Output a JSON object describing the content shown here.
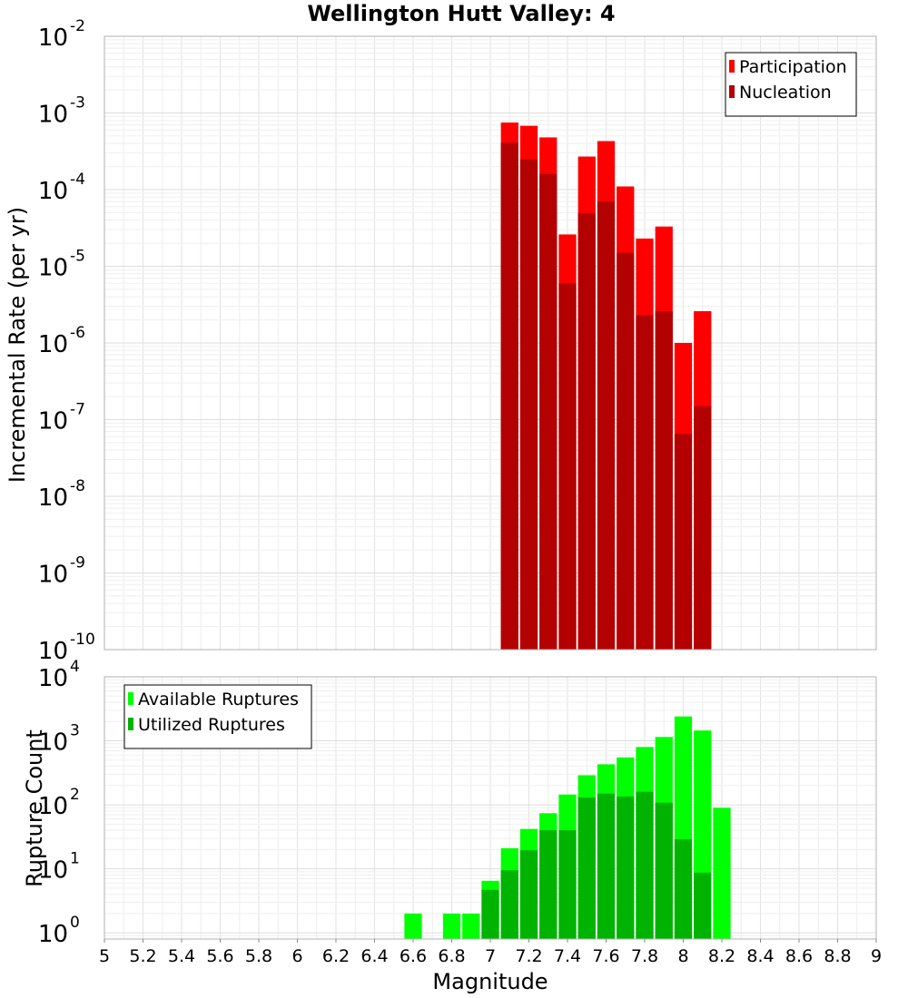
{
  "chart_data": [
    {
      "type": "bar",
      "title": "Wellington Hutt Valley: 4",
      "xlabel": "",
      "ylabel": "Incremental Rate (per yr)",
      "y_scale": "log",
      "xlim": [
        5,
        9
      ],
      "ylim": [
        1e-10,
        0.01
      ],
      "y_ticks": [
        {
          "base": "10",
          "exp": "-2"
        },
        {
          "base": "10",
          "exp": "-3"
        },
        {
          "base": "10",
          "exp": "-4"
        },
        {
          "base": "10",
          "exp": "-5"
        },
        {
          "base": "10",
          "exp": "-6"
        },
        {
          "base": "10",
          "exp": "-7"
        },
        {
          "base": "10",
          "exp": "-8"
        },
        {
          "base": "10",
          "exp": "-9"
        },
        {
          "base": "10",
          "exp": "-10"
        }
      ],
      "grid": true,
      "legend_position": "top-right",
      "bar_width": 0.1,
      "x": [
        7.1,
        7.2,
        7.3,
        7.4,
        7.5,
        7.6,
        7.7,
        7.8,
        7.9,
        8.0,
        8.1
      ],
      "series": [
        {
          "name": "Participation",
          "color": "#ff0000",
          "values": [
            0.00075,
            0.00068,
            0.00048,
            2.6e-05,
            0.00027,
            0.00043,
            0.00011,
            2.3e-05,
            3.3e-05,
            1e-06,
            2.6e-06
          ]
        },
        {
          "name": "Nucleation",
          "color": "#b30000",
          "values": [
            0.00041,
            0.00025,
            0.00016,
            6e-06,
            4.9e-05,
            7e-05,
            1.5e-05,
            2.3e-06,
            2.6e-06,
            6.5e-08,
            1.5e-07
          ]
        }
      ]
    },
    {
      "type": "bar",
      "title": "",
      "xlabel": "Magnitude",
      "ylabel": "Rupture Count",
      "y_scale": "log",
      "xlim": [
        5,
        9
      ],
      "ylim": [
        0.8,
        10000
      ],
      "x_ticks": [
        "5",
        "5.2",
        "5.4",
        "5.6",
        "5.8",
        "6",
        "6.2",
        "6.4",
        "6.6",
        "6.8",
        "7",
        "7.2",
        "7.4",
        "7.6",
        "7.8",
        "8",
        "8.2",
        "8.4",
        "8.6",
        "8.8",
        "9"
      ],
      "y_ticks": [
        {
          "base": "10",
          "exp": "4"
        },
        {
          "base": "10",
          "exp": "3"
        },
        {
          "base": "10",
          "exp": "2"
        },
        {
          "base": "10",
          "exp": "1"
        },
        {
          "base": "10",
          "exp": "0"
        }
      ],
      "grid": true,
      "legend_position": "top-left",
      "bar_width": 0.1,
      "x": [
        6.6,
        6.8,
        6.9,
        7.0,
        7.1,
        7.2,
        7.3,
        7.4,
        7.5,
        7.6,
        7.7,
        7.8,
        7.9,
        8.0,
        8.1,
        8.2
      ],
      "series": [
        {
          "name": "Available Ruptures",
          "color": "#00ff00",
          "values": [
            2,
            2,
            2,
            6.5,
            21,
            42,
            74,
            145,
            290,
            430,
            550,
            800,
            1150,
            2400,
            1450,
            90
          ]
        },
        {
          "name": "Utilized Ruptures",
          "color": "#00b300",
          "values": [
            0,
            0,
            0,
            4.7,
            9.5,
            19.5,
            40,
            40,
            130,
            150,
            135,
            160,
            108,
            29,
            8.7,
            0
          ]
        }
      ]
    }
  ]
}
